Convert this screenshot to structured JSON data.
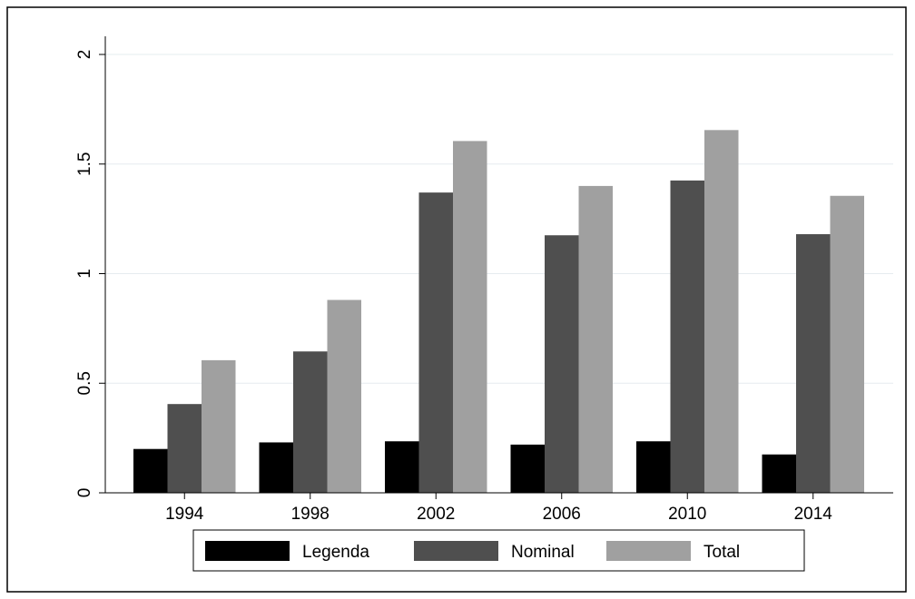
{
  "chart_data": {
    "type": "bar",
    "title": "",
    "xlabel": "",
    "ylabel": "",
    "categories": [
      "1994",
      "1998",
      "2002",
      "2006",
      "2010",
      "2014"
    ],
    "series": [
      {
        "name": "Legenda",
        "color": "#000000",
        "values": [
          0.2,
          0.23,
          0.235,
          0.22,
          0.235,
          0.175
        ]
      },
      {
        "name": "Nominal",
        "color": "#4f4f4f",
        "values": [
          0.405,
          0.645,
          1.37,
          1.175,
          1.425,
          1.18
        ]
      },
      {
        "name": "Total",
        "color": "#a0a0a0",
        "values": [
          0.605,
          0.88,
          1.605,
          1.4,
          1.655,
          1.355
        ]
      }
    ],
    "ylim": [
      0,
      2
    ],
    "yticks": [
      {
        "value": 0,
        "label": "0"
      },
      {
        "value": 0.5,
        "label": "0.5"
      },
      {
        "value": 1,
        "label": "1"
      },
      {
        "value": 1.5,
        "label": "1.5"
      },
      {
        "value": 2,
        "label": "2"
      }
    ],
    "grid": true,
    "legend_position": "bottom"
  }
}
